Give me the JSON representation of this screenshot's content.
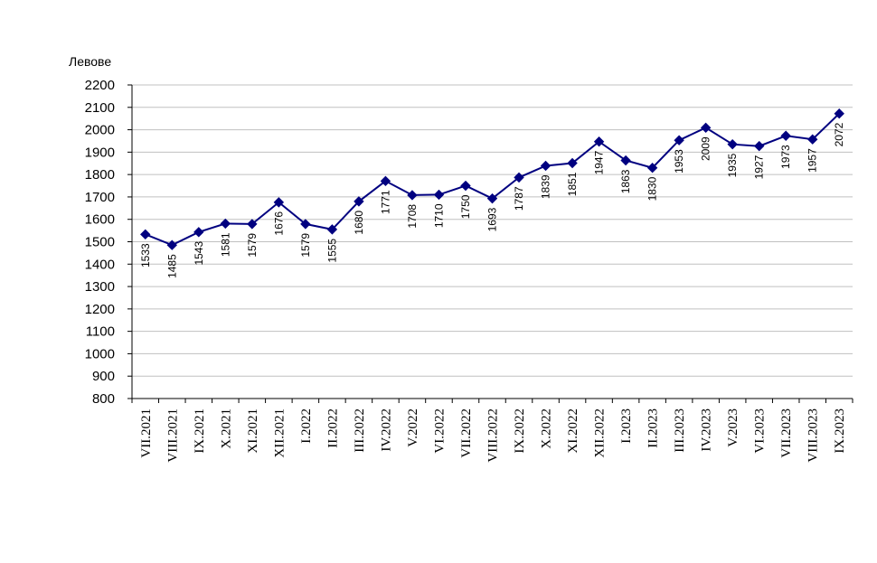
{
  "chart_data": {
    "type": "line",
    "ylabel": "Левове",
    "ylim": [
      800,
      2200
    ],
    "ytick_step": 100,
    "grid": true,
    "categories": [
      "VII.2021",
      "VIII.2021",
      "IX.2021",
      "X.2021",
      "XI.2021",
      "XII.2021",
      "I.2022",
      "II.2022",
      "III.2022",
      "IV.2022",
      "V.2022",
      "VI.2022",
      "VII.2022",
      "VIII.2022",
      "IX.2022",
      "X.2022",
      "XI.2022",
      "XII.2022",
      "I.2023",
      "II.2023",
      "III.2023",
      "IV.2023",
      "V.2023",
      "VI.2023",
      "VII.2023",
      "VIII.2023",
      "IX.2023"
    ],
    "series": [
      {
        "color": "#000080",
        "marker": "diamond",
        "values": [
          1533,
          1485,
          1543,
          1581,
          1579,
          1676,
          1579,
          1555,
          1680,
          1771,
          1708,
          1710,
          1750,
          1693,
          1787,
          1839,
          1851,
          1947,
          1863,
          1830,
          1953,
          2009,
          1935,
          1927,
          1973,
          1957,
          2072
        ]
      }
    ]
  }
}
